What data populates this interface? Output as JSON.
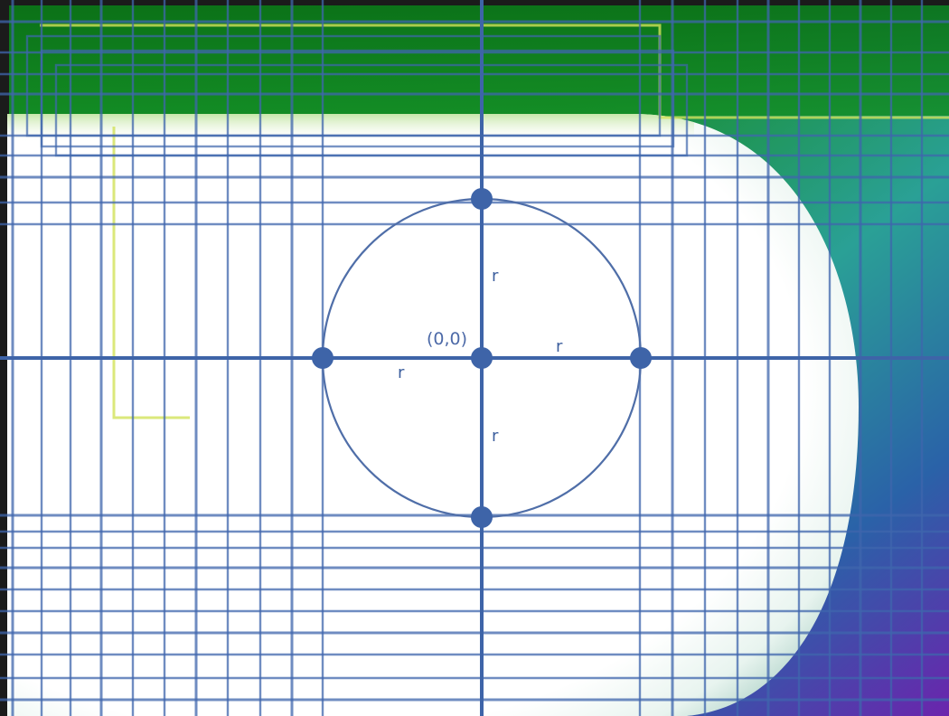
{
  "diagram": {
    "origin_label": "(0,0)",
    "radius_label": "r",
    "colors": {
      "grid_line": "#3f66ad",
      "circle": "#4f6ea8",
      "point": "#3e64a8",
      "background_top": "#0f7d1c",
      "background_right": "#2e9f8e",
      "background_bottom_right": "#6a2faa",
      "rounded_panel": "#ffffff",
      "highlight_line": "#d6e36a"
    }
  }
}
